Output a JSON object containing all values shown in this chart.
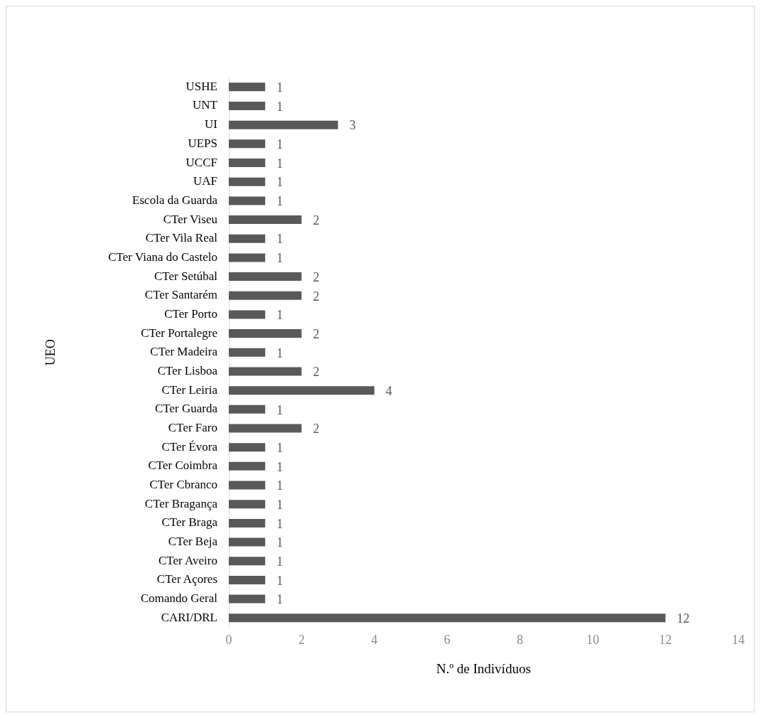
{
  "chart_data": {
    "type": "bar",
    "orientation": "horizontal",
    "xlabel": "N.º de Indivíduos",
    "ylabel": "UEO",
    "categories": [
      "USHE",
      "UNT",
      "UI",
      "UEPS",
      "UCCF",
      "UAF",
      "Escola da Guarda",
      "CTer Viseu",
      "CTer Vila Real",
      "CTer Viana do Castelo",
      "CTer Setúbal",
      "CTer Santarém",
      "CTer Porto",
      "CTer Portalegre",
      "CTer Madeira",
      "CTer Lisboa",
      "CTer Leiria",
      "CTer Guarda",
      "CTer Faro",
      "CTer Évora",
      "CTer Coimbra",
      "CTer Cbranco",
      "CTer Bragança",
      "CTer Braga",
      "CTer Beja",
      "CTer Aveiro",
      "CTer Açores",
      "Comando Geral",
      "CARI/DRL"
    ],
    "values": [
      1,
      1,
      3,
      1,
      1,
      1,
      1,
      2,
      1,
      1,
      2,
      2,
      1,
      2,
      1,
      2,
      4,
      1,
      2,
      1,
      1,
      1,
      1,
      1,
      1,
      1,
      1,
      1,
      12
    ],
    "color": "#595959",
    "xlim": [
      0,
      14
    ],
    "xticks": [
      0,
      2,
      4,
      6,
      8,
      10,
      12,
      14
    ],
    "grid": false,
    "legend": false,
    "data_labels": true
  }
}
